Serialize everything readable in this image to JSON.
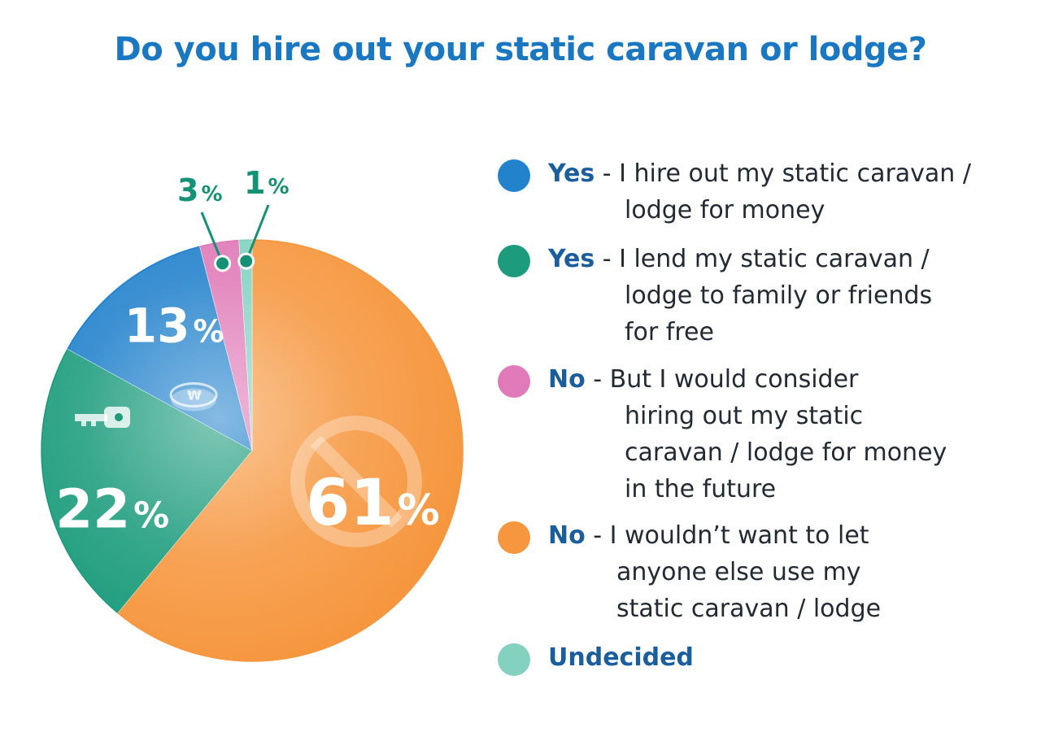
{
  "colors": {
    "title": "#1a78c2",
    "blue": "#2282cc",
    "green": "#1c9c7c",
    "pink": "#e07ab8",
    "orange": "#f6973f",
    "mint": "#84d1c0",
    "label_green": "#149273"
  },
  "chart_data": {
    "type": "pie",
    "title": "Do you hire out your static caravan or lodge?",
    "slices": [
      {
        "label": "Yes - I hire out my static caravan / lodge for money",
        "value": 13,
        "display": "13",
        "color": "#2282cc"
      },
      {
        "label": "Yes - I lend my static caravan / lodge to family or friends for free",
        "value": 22,
        "display": "22",
        "color": "#1c9c7c"
      },
      {
        "label": "No - But I would consider hiring out my static caravan / lodge for money in the future",
        "value": 3,
        "display": "3",
        "color": "#e07ab8"
      },
      {
        "label": "No - I wouldn't want to let anyone else use my static caravan / lodge",
        "value": 61,
        "display": "61",
        "color": "#f6973f"
      },
      {
        "label": "Undecided",
        "value": 1,
        "display": "1",
        "color": "#84d1c0"
      }
    ],
    "unit": "%",
    "legend_placement": "right"
  },
  "legend": [
    {
      "bold": "Yes",
      "rest": " - I hire out my static caravan /",
      "cont": [
        "lodge for money"
      ]
    },
    {
      "bold": "Yes",
      "rest": " - I lend my static caravan /",
      "cont": [
        "lodge to family or friends",
        "for free"
      ]
    },
    {
      "bold": "No",
      "rest": " - But I would consider",
      "cont": [
        "hiring out my static",
        "caravan / lodge for money",
        "in the future"
      ]
    },
    {
      "bold": "No",
      "rest": " - I wouldn’t want to let",
      "cont": [
        "anyone else use my",
        "static caravan / lodge"
      ]
    },
    {
      "bold": "Undecided",
      "rest": "",
      "cont": []
    }
  ],
  "icons": [
    "coin-icon",
    "key-icon",
    "no-entry-icon"
  ]
}
